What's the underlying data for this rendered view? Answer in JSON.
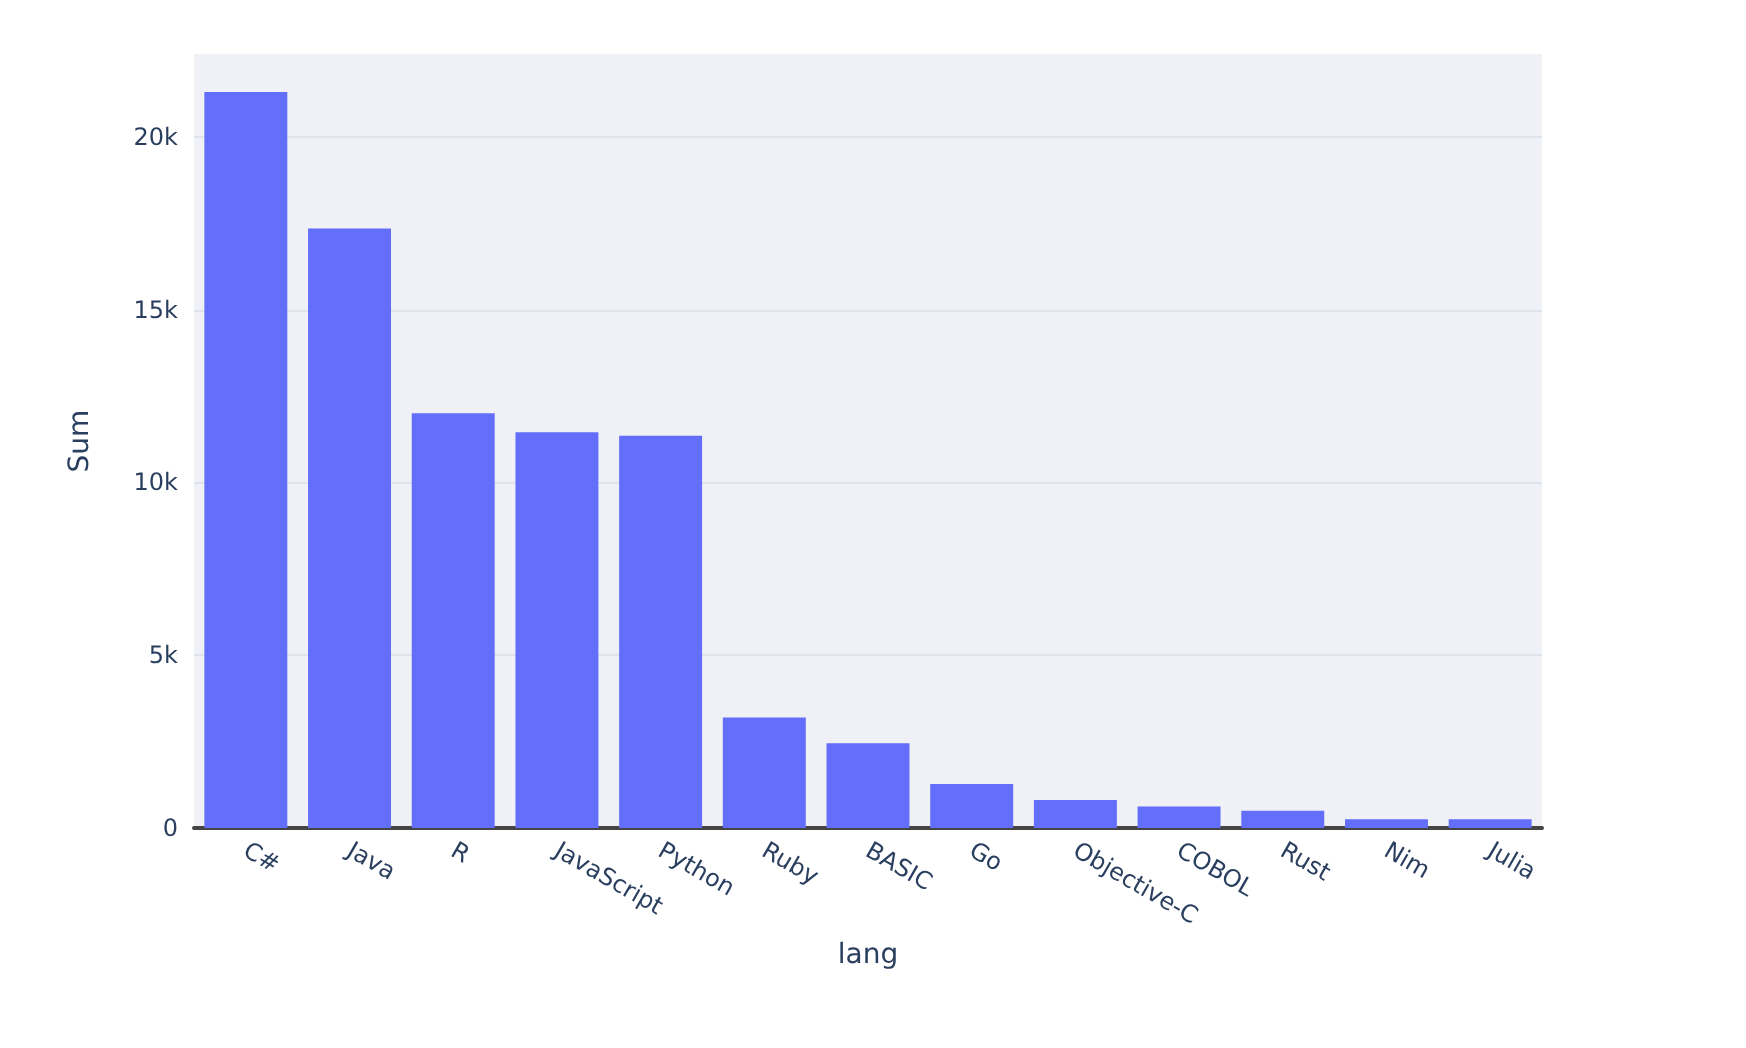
{
  "chart_data": {
    "type": "bar",
    "xlabel": "lang",
    "ylabel": "Sum",
    "categories": [
      "C#",
      "Java",
      "R",
      "JavaScript",
      "Python",
      "Ruby",
      "BASIC",
      "Go",
      "Objective-C",
      "COBOL",
      "Rust",
      "Nim",
      "Julia"
    ],
    "values": [
      21300,
      17350,
      12000,
      11450,
      11350,
      3200,
      2450,
      1270,
      810,
      620,
      500,
      250,
      250
    ],
    "color": "#636efa",
    "ylim": [
      0,
      22400
    ],
    "yticks": [
      0,
      {
        "value": 5000,
        "label": "5k"
      },
      {
        "value": 10000,
        "label": "10k"
      },
      {
        "value": 15000,
        "label": "15k"
      },
      {
        "value": 20000,
        "label": "20k"
      }
    ],
    "grid": "y"
  }
}
